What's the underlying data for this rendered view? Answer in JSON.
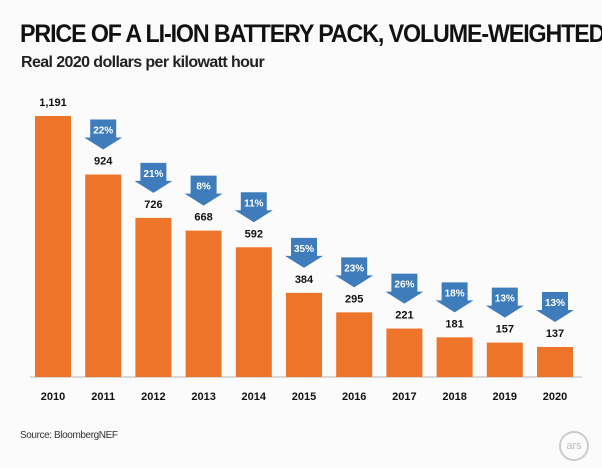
{
  "chart_data": {
    "type": "bar",
    "title": "PRICE OF A LI-ION BATTERY PACK, VOLUME-WEIGHTED AVERAGE",
    "subtitle": "Real 2020 dollars per kilowatt hour",
    "categories": [
      "2010",
      "2011",
      "2012",
      "2013",
      "2014",
      "2015",
      "2016",
      "2017",
      "2018",
      "2019",
      "2020"
    ],
    "values": [
      1191,
      924,
      726,
      668,
      592,
      384,
      295,
      221,
      181,
      157,
      137
    ],
    "value_labels": [
      "1,191",
      "924",
      "726",
      "668",
      "592",
      "384",
      "295",
      "221",
      "181",
      "157",
      "137"
    ],
    "change_labels": [
      "",
      "22%",
      "21%",
      "8%",
      "11%",
      "35%",
      "23%",
      "26%",
      "18%",
      "13%",
      "13%"
    ],
    "ylim": [
      0,
      1191
    ],
    "grid": false,
    "colors": {
      "bar": "#ee7429",
      "arrow": "#3f7cbb"
    },
    "source": "Source: BloombergNEF",
    "logo": "ars"
  }
}
